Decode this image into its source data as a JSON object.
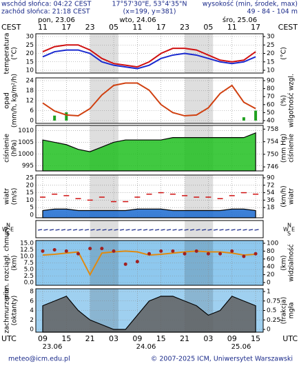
{
  "header": {
    "sunrise": "wschód słońca: 04:22 CEST",
    "sunset": "zachód słońca: 21:18 CEST",
    "coords": "17°57'30\"E, 53°4'35\"N",
    "grid": "(x=199, y=381)",
    "height_label": "wysokość (min, środek, max)",
    "height_values": "49 - 84 - 104 m"
  },
  "time": {
    "utc": [
      "09",
      null,
      "15",
      null,
      "21",
      null,
      "03",
      null,
      "09",
      null,
      "15",
      null,
      "21",
      null,
      "03",
      null,
      "09",
      null,
      "15"
    ],
    "cest": [
      "11",
      null,
      "17",
      null,
      "23",
      null,
      "05",
      null,
      "11",
      null,
      "17",
      null,
      "23",
      null,
      "05",
      null,
      "11",
      null,
      "17"
    ],
    "top_dates": [
      "pon, 23.06",
      "wto, 24.06",
      "śro, 25.06"
    ],
    "bottom_dates": [
      "23.06",
      "24.06",
      "25.06"
    ],
    "top_zone": "CEST",
    "bottom_zone": "UTC"
  },
  "wind_direction_labels": [
    "W",
    "N",
    "E",
    "S"
  ],
  "chart_data": [
    {
      "type": "line",
      "ylabel": [
        "temperatura",
        "(°C)"
      ],
      "y2label": [
        "(°C)"
      ],
      "ylim": [
        10,
        30
      ],
      "yticks": [
        10,
        15,
        20,
        25,
        30
      ],
      "y2lim": [
        10,
        30
      ],
      "y2ticks": [
        10,
        15,
        20,
        25,
        30
      ],
      "series": [
        {
          "type": "line",
          "color": "#d01010",
          "values": [
            21,
            24,
            25,
            25,
            22,
            17,
            14,
            13,
            12,
            15,
            20,
            23,
            23,
            22,
            19,
            16,
            15,
            16,
            21
          ]
        },
        {
          "type": "line",
          "color": "#1a2ad0",
          "values": [
            18,
            21,
            22,
            22,
            20,
            15,
            13,
            12,
            11,
            13,
            17,
            19,
            20,
            19,
            17,
            15,
            14,
            15,
            18
          ]
        }
      ]
    },
    {
      "type": "bar",
      "ylabel": [
        "opad",
        "(mm/h, kg/m²/h)"
      ],
      "y2label": [
        "(%)",
        "wilgotność wzgl."
      ],
      "ylim": [
        0,
        24
      ],
      "yticks": [
        0,
        6,
        12,
        18,
        24
      ],
      "y2lim": [
        40,
        90
      ],
      "y2ticks": [
        40,
        50,
        60,
        70,
        80,
        90
      ],
      "series": [
        {
          "type": "bar",
          "color": "#20a020",
          "values": [
            0,
            3,
            5,
            0,
            0,
            0,
            0,
            0,
            0,
            0,
            0,
            0,
            0,
            0,
            0,
            0,
            0,
            2,
            6
          ]
        },
        {
          "type": "line",
          "color": "#d04010",
          "axis": "y2",
          "values": [
            62,
            52,
            47,
            46,
            55,
            72,
            84,
            87,
            87,
            78,
            60,
            50,
            46,
            47,
            56,
            74,
            84,
            63,
            55
          ]
        }
      ]
    },
    {
      "type": "area",
      "ylabel": [
        "ciśnienie",
        "(hPa)"
      ],
      "y2label": [
        "(mm Hg)",
        "ciśnienie"
      ],
      "ylim": [
        994,
        1011
      ],
      "yticks": [
        995,
        1000,
        1005,
        1010
      ],
      "y2lim": [
        745.6,
        758.3
      ],
      "y2ticks": [
        746,
        750,
        754,
        758
      ],
      "series": [
        {
          "type": "area",
          "color": "#20c020",
          "values": [
            1006,
            1005,
            1004,
            1002,
            1001,
            1003,
            1005,
            1006,
            1006,
            1006,
            1006,
            1007,
            1007,
            1007,
            1007,
            1007,
            1007,
            1007,
            1009
          ]
        }
      ]
    },
    {
      "type": "area",
      "ylabel": [
        "wiatr",
        "(m/s)"
      ],
      "y2label": [
        "(km/h)",
        "wiatr"
      ],
      "ylim": [
        0,
        25
      ],
      "yticks": [
        0,
        5,
        10,
        15,
        20,
        25
      ],
      "y2lim": [
        0,
        90
      ],
      "y2ticks": [
        18,
        36,
        54,
        72,
        90
      ],
      "series": [
        {
          "type": "area",
          "color": "#1a6ad0",
          "values": [
            3,
            4,
            4,
            3,
            3,
            3,
            3,
            3,
            4,
            4,
            4,
            3,
            3,
            3,
            3,
            3,
            4,
            4,
            3
          ]
        },
        {
          "type": "dash",
          "color": "#d01010",
          "values": [
            12,
            14,
            13,
            11,
            10,
            12,
            9,
            9,
            12,
            14,
            15,
            14,
            13,
            12,
            12,
            11,
            13,
            15,
            14
          ]
        }
      ]
    },
    {
      "type": "line",
      "ylabel": [
        "pion. rozciągł. chmury",
        "(km)"
      ],
      "y2label": [
        "(km)",
        "widzialność"
      ],
      "ylim": [
        0,
        15
      ],
      "yticks": [
        {
          "value": 0,
          "label": "0.0"
        },
        {
          "value": 2.5,
          "label": "2.5"
        },
        {
          "value": 5,
          "label": "5.0"
        },
        {
          "value": 7.5,
          "label": "7.5"
        },
        {
          "value": 10,
          "label": "10.0"
        },
        {
          "value": 12.5,
          "label": "12.5"
        },
        {
          "value": 15,
          "label": "15.0"
        }
      ],
      "y2lim": [
        0,
        100
      ],
      "y2ticks": [
        0,
        20,
        40,
        60,
        80,
        100
      ],
      "series": [
        {
          "type": "line",
          "color": "#e08a10",
          "axis": "y2",
          "values": [
            70,
            72,
            75,
            78,
            20,
            75,
            78,
            80,
            78,
            70,
            72,
            75,
            78,
            80,
            78,
            78,
            75,
            70,
            72
          ]
        },
        {
          "type": "dots",
          "color": "#a02020",
          "values": [
            12,
            12.5,
            12,
            11,
            13,
            13,
            12,
            7,
            8,
            11,
            12,
            12,
            11,
            12,
            11,
            11,
            12,
            10,
            11
          ]
        }
      ]
    },
    {
      "type": "area",
      "ylabel": [
        "zachmurzenie",
        "(oktanty)"
      ],
      "y2label": [
        "(frakcja)",
        "mgła"
      ],
      "ylim": [
        0,
        8
      ],
      "yticks": [
        0,
        2,
        4,
        6,
        8
      ],
      "y2lim": [
        0,
        1
      ],
      "y2ticks": [
        0,
        0.25,
        0.5,
        0.75,
        1
      ],
      "series": [
        {
          "type": "area",
          "color": "#606060",
          "values": [
            5,
            6,
            7,
            4,
            2,
            1,
            0,
            0,
            3,
            6,
            7,
            7,
            6,
            5,
            3,
            4,
            7,
            6,
            5
          ]
        }
      ]
    }
  ],
  "footer": {
    "email": "meteo@icm.edu.pl",
    "copyright": "© 2007-2025 ICM, Uniwersytet Warszawski"
  }
}
